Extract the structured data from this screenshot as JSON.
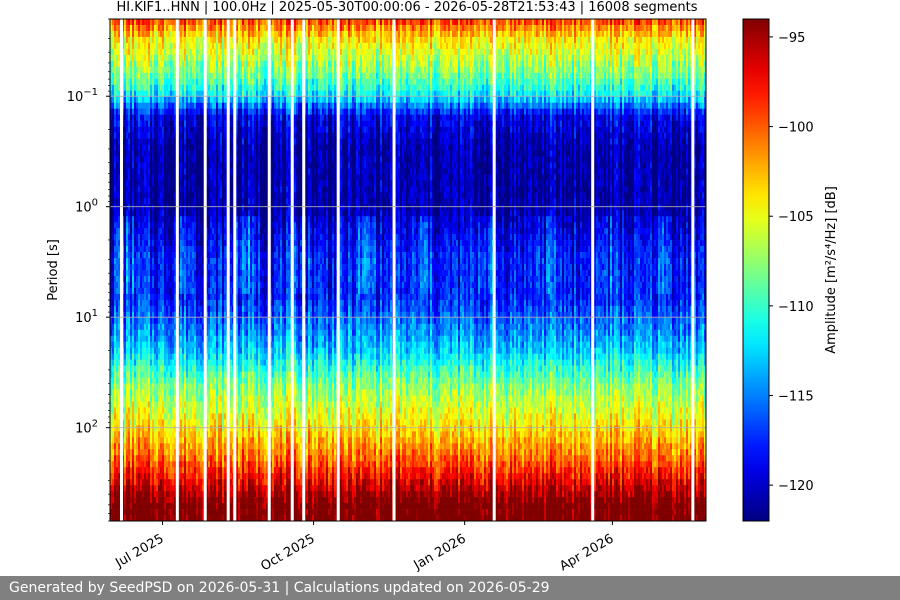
{
  "chart_data": {
    "type": "heatmap",
    "title": "HI.KIF1..HNN | 100.0Hz | 2025-05-30T00:00:06 - 2026-05-28T21:53:43 | 16008 segments",
    "xlabel": "",
    "ylabel": "Period [s]",
    "y_scale": "log",
    "y_inverted": true,
    "ylim": [
      0.02,
      700
    ],
    "xlim": [
      "2025-05-30",
      "2026-05-28"
    ],
    "x_ticks": [
      {
        "date": "2025-07-01",
        "label": "Jul 2025"
      },
      {
        "date": "2025-10-01",
        "label": "Oct 2025"
      },
      {
        "date": "2026-01-01",
        "label": "Jan 2026"
      },
      {
        "date": "2026-04-01",
        "label": "Apr 2026"
      }
    ],
    "y_ticks": [
      {
        "value": 0.1,
        "base": "10",
        "exp": "−1"
      },
      {
        "value": 1,
        "base": "10",
        "exp": "0"
      },
      {
        "value": 10,
        "base": "10",
        "exp": "1"
      },
      {
        "value": 100,
        "base": "10",
        "exp": "2"
      }
    ],
    "grid": true,
    "colormap": "jet",
    "colorbar": {
      "label": "Amplitude [m²/s⁴/Hz] [dB]",
      "range": [
        -122,
        -94
      ],
      "ticks": [
        {
          "value": -95,
          "label": "−95"
        },
        {
          "value": -100,
          "label": "−100"
        },
        {
          "value": -105,
          "label": "−105"
        },
        {
          "value": -110,
          "label": "−110"
        },
        {
          "value": -115,
          "label": "−115"
        },
        {
          "value": -120,
          "label": "−120"
        }
      ]
    },
    "profile": [
      {
        "period": 0.02,
        "db": -99
      },
      {
        "period": 0.03,
        "db": -104
      },
      {
        "period": 0.06,
        "db": -108
      },
      {
        "period": 0.1,
        "db": -112
      },
      {
        "period": 0.15,
        "db": -119
      },
      {
        "period": 0.3,
        "db": -121
      },
      {
        "period": 1,
        "db": -121
      },
      {
        "period": 2,
        "db": -119
      },
      {
        "period": 3,
        "db": -118
      },
      {
        "period": 6,
        "db": -118
      },
      {
        "period": 10,
        "db": -116
      },
      {
        "period": 20,
        "db": -113
      },
      {
        "period": 40,
        "db": -108
      },
      {
        "period": 100,
        "db": -104
      },
      {
        "period": 200,
        "db": -100
      },
      {
        "period": 300,
        "db": -97
      },
      {
        "period": 500,
        "db": -93
      },
      {
        "period": 700,
        "db": -93
      }
    ],
    "gaps": [
      "2025-06-06",
      "2025-07-10",
      "2025-07-27",
      "2025-08-10",
      "2025-08-14",
      "2025-09-04",
      "2025-09-18",
      "2025-09-25",
      "2025-10-16",
      "2025-11-19",
      "2026-01-19",
      "2026-03-20",
      "2026-05-20"
    ]
  },
  "footer": {
    "text": "Generated by SeedPSD on 2026-05-31 | Calculations updated on 2026-05-29"
  }
}
